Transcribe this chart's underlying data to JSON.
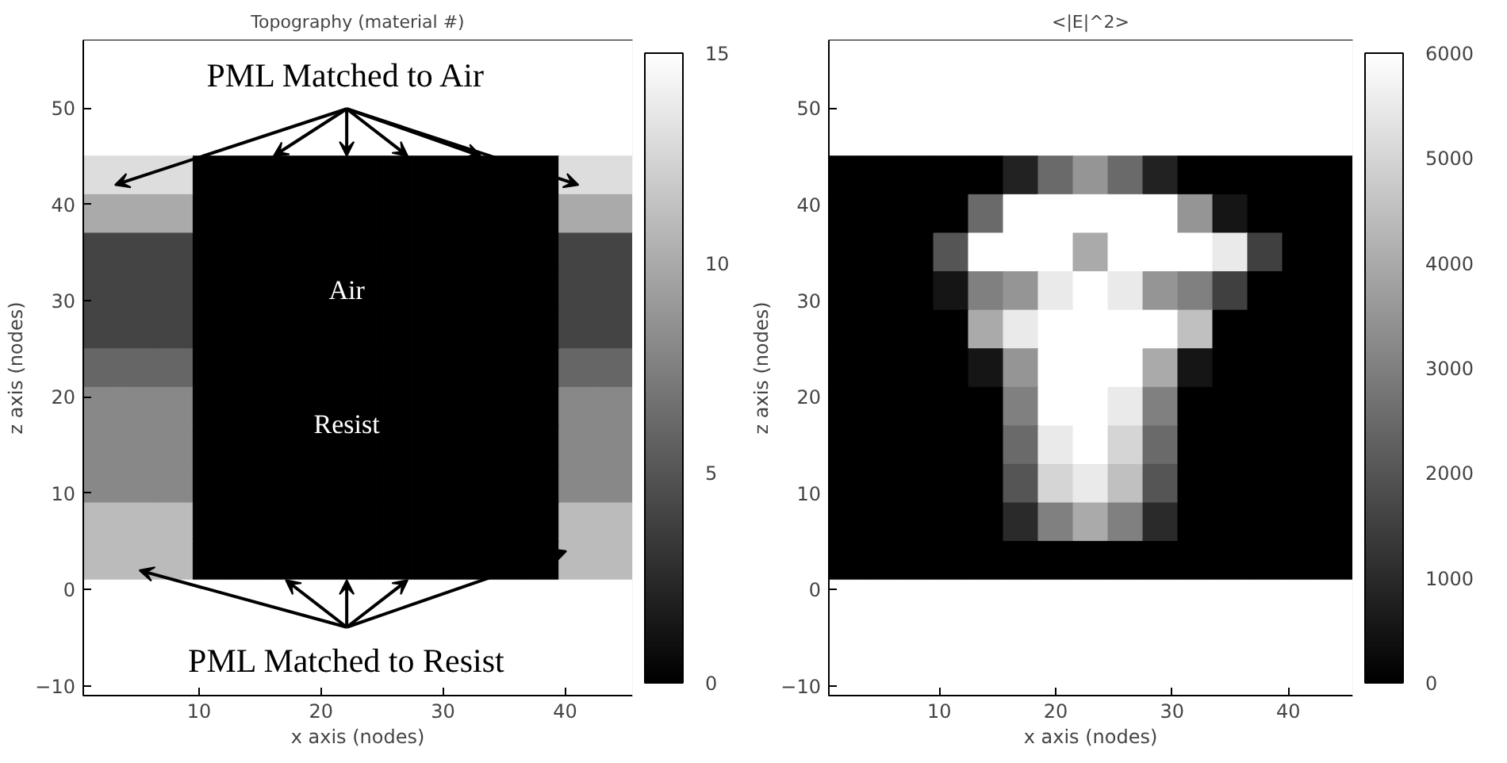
{
  "chart_data": [
    {
      "type": "heatmap",
      "title": "Topography (material #)",
      "xlabel": "x axis (nodes)",
      "ylabel": "z axis (nodes)",
      "xlim": [
        0.5,
        45.5
      ],
      "ylim": [
        -11,
        57
      ],
      "xticks": [
        10,
        20,
        30,
        40
      ],
      "yticks": [
        -10,
        0,
        10,
        20,
        30,
        40,
        50
      ],
      "clim": [
        0,
        15
      ],
      "cticks": [
        0,
        5,
        10,
        15
      ],
      "annotations": [
        "PML Matched to Air",
        "Air",
        "Resist",
        "PML Matched to Resist"
      ],
      "cells": [
        [
          15,
          15,
          15,
          15,
          15,
          15,
          15,
          15,
          15,
          15,
          15,
          15,
          15,
          15,
          15
        ],
        [
          15,
          15,
          15,
          15,
          15,
          15,
          15,
          15,
          15,
          15,
          15,
          15,
          15,
          15,
          15
        ],
        [
          15,
          15,
          15,
          15,
          15,
          15,
          15,
          15,
          15,
          15,
          15,
          15,
          15,
          15,
          15
        ],
        [
          13,
          13,
          13,
          0,
          0,
          0,
          0,
          0,
          0,
          0,
          0,
          0,
          0,
          13,
          13
        ],
        [
          10,
          10,
          10,
          0,
          0,
          0,
          0,
          0,
          0,
          0,
          0,
          0,
          0,
          10,
          10
        ],
        [
          4,
          4,
          4,
          0,
          0,
          0,
          0,
          0,
          0,
          0,
          0,
          0,
          0,
          4,
          4
        ],
        [
          4,
          4,
          4,
          0,
          0,
          0,
          0,
          0,
          0,
          0,
          0,
          0,
          0,
          4,
          4
        ],
        [
          4,
          4,
          4,
          0,
          0,
          0,
          0,
          0,
          0,
          0,
          0,
          0,
          0,
          4,
          4
        ],
        [
          6,
          6,
          6,
          0,
          0,
          0,
          0,
          0,
          0,
          0,
          0,
          0,
          0,
          6,
          6
        ],
        [
          8,
          8,
          8,
          0,
          0,
          0,
          0,
          0,
          0,
          0,
          0,
          0,
          0,
          8,
          8
        ],
        [
          8,
          8,
          8,
          0,
          0,
          0,
          0,
          0,
          0,
          0,
          0,
          0,
          0,
          8,
          8
        ],
        [
          8,
          8,
          8,
          0,
          0,
          0,
          0,
          0,
          0,
          0,
          0,
          0,
          0,
          8,
          8
        ],
        [
          11,
          11,
          11,
          0,
          0,
          0,
          0,
          0,
          0,
          0,
          0,
          0,
          0,
          11,
          11
        ],
        [
          11,
          11,
          11,
          0,
          0,
          0,
          0,
          0,
          0,
          0,
          0,
          0,
          0,
          11,
          11
        ],
        [
          15,
          15,
          15,
          15,
          15,
          15,
          15,
          15,
          15,
          15,
          15,
          15,
          15,
          15,
          15
        ],
        [
          15,
          15,
          15,
          15,
          15,
          15,
          15,
          15,
          15,
          15,
          15,
          15,
          15,
          15,
          15
        ],
        [
          15,
          15,
          15,
          15,
          15,
          15,
          15,
          15,
          15,
          15,
          15,
          15,
          15,
          15,
          15
        ]
      ]
    },
    {
      "type": "heatmap",
      "title": "<|E|^2>",
      "xlabel": "x axis (nodes)",
      "ylabel": "z axis (nodes)",
      "xlim": [
        0.5,
        45.5
      ],
      "ylim": [
        -11,
        57
      ],
      "xticks": [
        10,
        20,
        30,
        40
      ],
      "yticks": [
        -10,
        0,
        10,
        20,
        30,
        40,
        50
      ],
      "clim": [
        0,
        6000
      ],
      "cticks": [
        0,
        1000,
        2000,
        3000,
        4000,
        5000,
        6000
      ],
      "cells": [
        [
          6000,
          6000,
          6000,
          6000,
          6000,
          6000,
          6000,
          6000,
          6000,
          6000,
          6000,
          6000,
          6000,
          6000,
          6000
        ],
        [
          6000,
          6000,
          6000,
          6000,
          6000,
          6000,
          6000,
          6000,
          6000,
          6000,
          6000,
          6000,
          6000,
          6000,
          6000
        ],
        [
          6000,
          6000,
          6000,
          6000,
          6000,
          6000,
          6000,
          6000,
          6000,
          6000,
          6000,
          6000,
          6000,
          6000,
          6000
        ],
        [
          0,
          0,
          0,
          0,
          0,
          800,
          2500,
          3500,
          2500,
          800,
          0,
          0,
          0,
          0,
          0
        ],
        [
          0,
          0,
          0,
          0,
          2500,
          6000,
          6000,
          6000,
          6000,
          6000,
          3500,
          500,
          0,
          0,
          0
        ],
        [
          0,
          0,
          0,
          2000,
          6000,
          6000,
          6000,
          4000,
          6000,
          6000,
          6000,
          5500,
          1500,
          0,
          0
        ],
        [
          0,
          0,
          0,
          500,
          3000,
          3500,
          5500,
          6000,
          5500,
          3500,
          3000,
          1500,
          0,
          0,
          0
        ],
        [
          0,
          0,
          0,
          0,
          4000,
          5500,
          6000,
          6000,
          6000,
          6000,
          4500,
          0,
          0,
          0,
          0
        ],
        [
          0,
          0,
          0,
          0,
          500,
          3500,
          6000,
          6000,
          6000,
          4000,
          500,
          0,
          0,
          0,
          0
        ],
        [
          0,
          0,
          0,
          0,
          0,
          3000,
          6000,
          6000,
          5500,
          3000,
          0,
          0,
          0,
          0,
          0
        ],
        [
          0,
          0,
          0,
          0,
          0,
          2500,
          5500,
          6000,
          5000,
          2500,
          0,
          0,
          0,
          0,
          0
        ],
        [
          0,
          0,
          0,
          0,
          0,
          2000,
          5000,
          5500,
          4500,
          2000,
          0,
          0,
          0,
          0,
          0
        ],
        [
          0,
          0,
          0,
          0,
          0,
          1000,
          3000,
          4000,
          3000,
          1000,
          0,
          0,
          0,
          0,
          0
        ],
        [
          0,
          0,
          0,
          0,
          0,
          0,
          0,
          0,
          0,
          0,
          0,
          0,
          0,
          0,
          0
        ],
        [
          6000,
          6000,
          6000,
          6000,
          6000,
          6000,
          6000,
          6000,
          6000,
          6000,
          6000,
          6000,
          6000,
          6000,
          6000
        ],
        [
          6000,
          6000,
          6000,
          6000,
          6000,
          6000,
          6000,
          6000,
          6000,
          6000,
          6000,
          6000,
          6000,
          6000,
          6000
        ],
        [
          6000,
          6000,
          6000,
          6000,
          6000,
          6000,
          6000,
          6000,
          6000,
          6000,
          6000,
          6000,
          6000,
          6000,
          6000
        ]
      ]
    }
  ]
}
